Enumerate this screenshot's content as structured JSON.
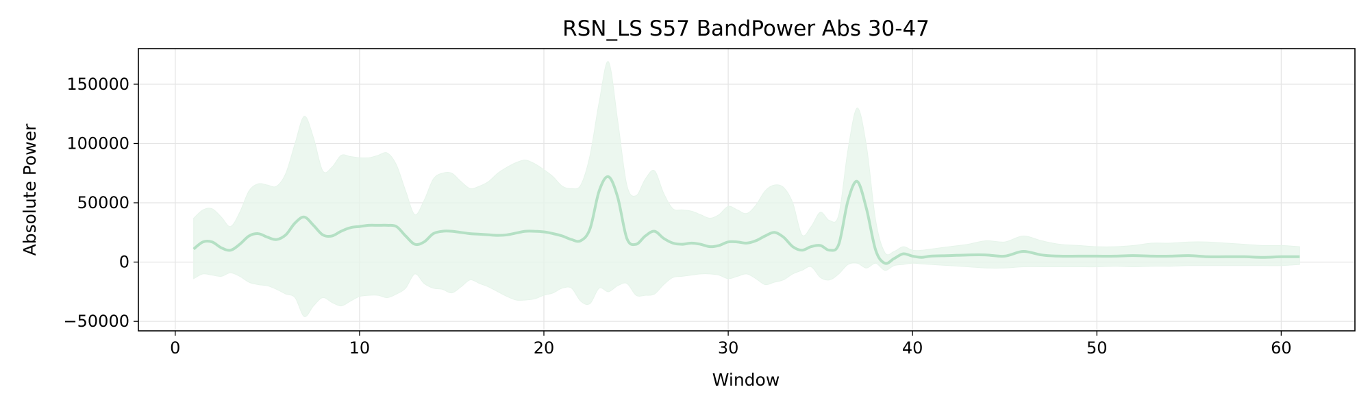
{
  "chart_data": {
    "type": "line",
    "title": "RSN_LS S57 BandPower Abs 30-47",
    "xlabel": "Window",
    "ylabel": "Absolute Power",
    "xlim": [
      -2,
      64
    ],
    "ylim": [
      -58000,
      180000
    ],
    "xticks": [
      0,
      10,
      20,
      30,
      40,
      50,
      60
    ],
    "yticks": [
      -50000,
      0,
      50000,
      100000,
      150000
    ],
    "ytick_labels": [
      "−50000",
      "0",
      "50000",
      "100000",
      "150000"
    ],
    "grid": true,
    "legend": "none",
    "color": "#b4e0c4",
    "band_color": "#e6f4ea",
    "series": [
      {
        "x": [
          1,
          1.5,
          2,
          2.5,
          3,
          3.5,
          4,
          4.5,
          5,
          5.5,
          6,
          6.5,
          7,
          7.5,
          8,
          8.5,
          9,
          9.5,
          10,
          10.5,
          11,
          11.5,
          12,
          12.5,
          13,
          13.5,
          14,
          14.5,
          15,
          15.5,
          16,
          16.5,
          17,
          17.5,
          18,
          18.5,
          19,
          19.5,
          20,
          20.5,
          21,
          21.5,
          22,
          22.5,
          23,
          23.5,
          24,
          24.5,
          25,
          25.5,
          26,
          26.5,
          27,
          27.5,
          28,
          28.5,
          29,
          29.5,
          30,
          30.5,
          31,
          31.5,
          32,
          32.5,
          33,
          33.5,
          34,
          34.5,
          35,
          35.5,
          36,
          36.5,
          37,
          37.5,
          38,
          38.5,
          39,
          39.5,
          40,
          40.5,
          41,
          42,
          43,
          44,
          45,
          46,
          47,
          48,
          49,
          50,
          51,
          52,
          53,
          54,
          55,
          56,
          57,
          58,
          59,
          60,
          61
        ],
        "mean": [
          11000,
          17000,
          17000,
          12000,
          10000,
          15000,
          22000,
          24000,
          21000,
          19000,
          23000,
          33000,
          38000,
          31000,
          23000,
          22000,
          26000,
          29000,
          30000,
          31000,
          31000,
          31000,
          30000,
          22000,
          15000,
          17000,
          24000,
          26000,
          26000,
          25000,
          24000,
          23500,
          23000,
          22500,
          23000,
          24500,
          26000,
          26000,
          25500,
          24000,
          22000,
          19000,
          18000,
          28000,
          60000,
          72000,
          55000,
          20000,
          15000,
          22000,
          26000,
          20000,
          16000,
          15000,
          16000,
          15000,
          13000,
          14000,
          17000,
          17000,
          16000,
          18000,
          22000,
          25000,
          21000,
          13000,
          10000,
          13000,
          14000,
          10000,
          15000,
          52000,
          68000,
          45000,
          10000,
          -1000,
          3000,
          7000,
          5000,
          4000,
          5000,
          5500,
          6000,
          6000,
          5000,
          9000,
          6000,
          5000,
          5000,
          5000,
          5000,
          5500,
          5000,
          5000,
          5500,
          4500,
          4500,
          4500,
          4000,
          4500,
          4500
        ],
        "upper": [
          37000,
          44000,
          45000,
          38000,
          30000,
          42000,
          60000,
          66000,
          65000,
          64000,
          75000,
          100000,
          123000,
          105000,
          77000,
          80000,
          90000,
          89000,
          88000,
          88000,
          90000,
          92000,
          82000,
          60000,
          40000,
          52000,
          70000,
          75000,
          75000,
          68000,
          62000,
          64000,
          68000,
          75000,
          80000,
          84000,
          86000,
          83000,
          78000,
          72000,
          64000,
          62000,
          65000,
          90000,
          135000,
          169000,
          120000,
          65000,
          56000,
          70000,
          77000,
          58000,
          45000,
          44000,
          43000,
          40000,
          37000,
          40000,
          47000,
          44000,
          41000,
          48000,
          60000,
          65000,
          63000,
          50000,
          23000,
          30000,
          42000,
          35000,
          40000,
          95000,
          130000,
          98000,
          35000,
          8000,
          9000,
          13000,
          10000,
          10000,
          11000,
          13000,
          15000,
          18000,
          17000,
          22000,
          18000,
          15000,
          14000,
          13000,
          13000,
          14000,
          16000,
          16000,
          17000,
          17000,
          16000,
          15000,
          14000,
          14000,
          13000
        ],
        "lower": [
          -14000,
          -10000,
          -11000,
          -12000,
          -9000,
          -12000,
          -17000,
          -19000,
          -20000,
          -23000,
          -27000,
          -30000,
          -46000,
          -37000,
          -30000,
          -34000,
          -37000,
          -33000,
          -29000,
          -28000,
          -28000,
          -30000,
          -27000,
          -22000,
          -10000,
          -18000,
          -22000,
          -23000,
          -26000,
          -21000,
          -15000,
          -18000,
          -21000,
          -25000,
          -29000,
          -32000,
          -32000,
          -31000,
          -28000,
          -26000,
          -22000,
          -22000,
          -33000,
          -35000,
          -22000,
          -25000,
          -20000,
          -18000,
          -28000,
          -28000,
          -27000,
          -19000,
          -13000,
          -12000,
          -11000,
          -10000,
          -10000,
          -11000,
          -14000,
          -12000,
          -10000,
          -14000,
          -19000,
          -17000,
          -15000,
          -10000,
          -7000,
          -4000,
          -13000,
          -15000,
          -10000,
          -2000,
          -1000,
          -5000,
          -1000,
          -7000,
          -3000,
          -2000,
          -1000,
          -1500,
          -2000,
          -3000,
          -4000,
          -5000,
          -5000,
          -4000,
          -4000,
          -4000,
          -4000,
          -4000,
          -3500,
          -4000,
          -3500,
          -3500,
          -3000,
          -3000,
          -3000,
          -3000,
          -3000,
          -3000,
          -2000
        ]
      }
    ]
  }
}
